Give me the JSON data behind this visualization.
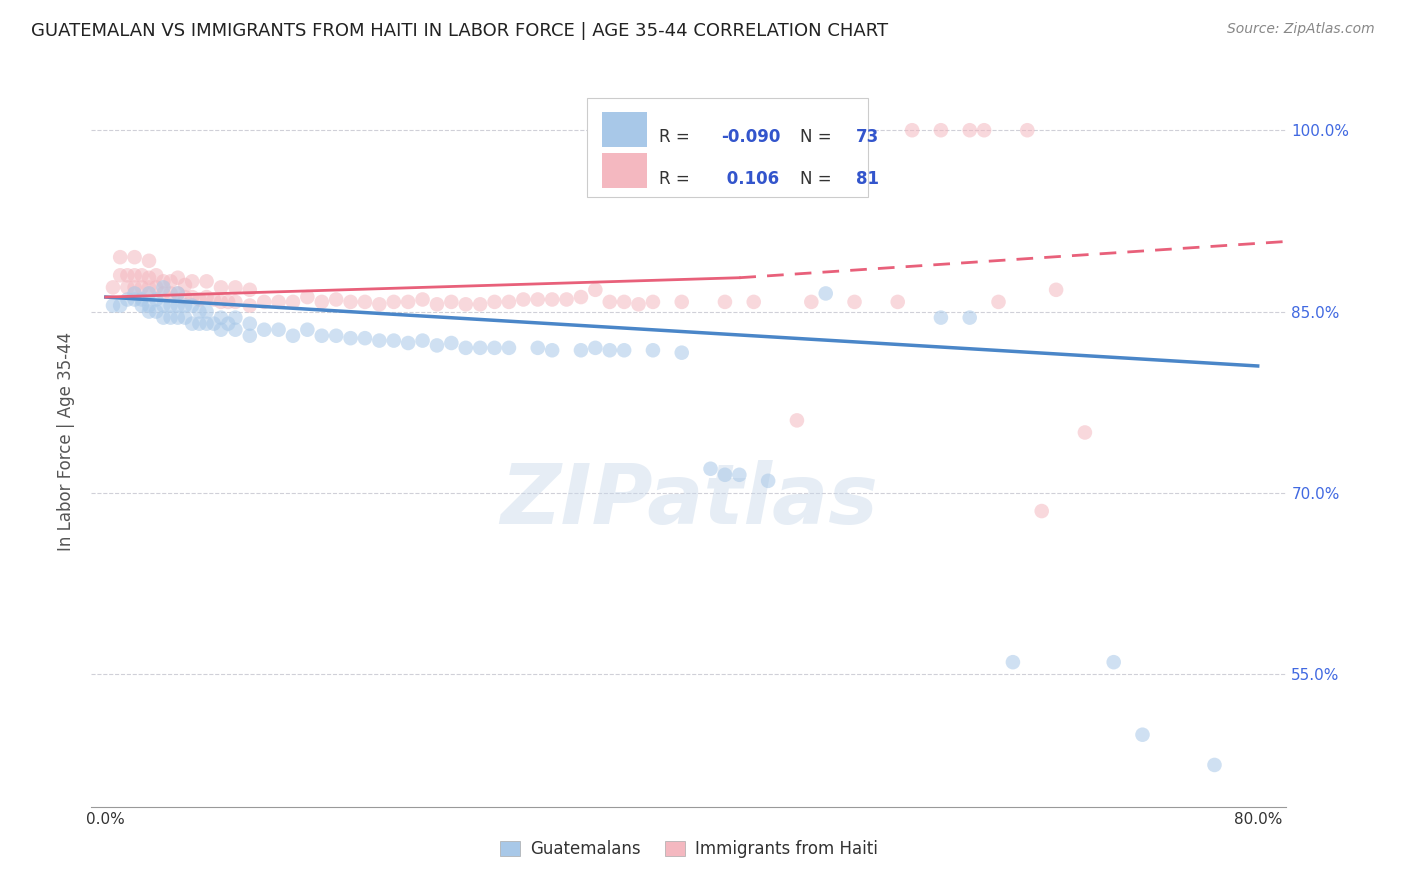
{
  "title": "GUATEMALAN VS IMMIGRANTS FROM HAITI IN LABOR FORCE | AGE 35-44 CORRELATION CHART",
  "source": "Source: ZipAtlas.com",
  "ylabel": "In Labor Force | Age 35-44",
  "xlim": [
    -0.01,
    0.82
  ],
  "ylim": [
    0.44,
    1.045
  ],
  "ytick_positions": [
    0.55,
    0.7,
    0.85,
    1.0
  ],
  "ytick_labels": [
    "55.0%",
    "70.0%",
    "85.0%",
    "100.0%"
  ],
  "xtick_positions": [
    0.0,
    0.1,
    0.2,
    0.3,
    0.4,
    0.5,
    0.6,
    0.7,
    0.8
  ],
  "xtick_labels": [
    "0.0%",
    "",
    "",
    "",
    "",
    "",
    "",
    "",
    "80.0%"
  ],
  "blue_R": -0.09,
  "blue_N": 73,
  "pink_R": 0.106,
  "pink_N": 81,
  "blue_color": "#a8c8e8",
  "pink_color": "#f4b8c0",
  "blue_line_color": "#4a86c8",
  "pink_line_color": "#e8607a",
  "legend_blue_label": "Guatemalans",
  "legend_pink_label": "Immigrants from Haiti",
  "watermark": "ZIPatlas",
  "blue_x": [
    0.005,
    0.01,
    0.015,
    0.02,
    0.02,
    0.025,
    0.025,
    0.03,
    0.03,
    0.03,
    0.035,
    0.035,
    0.04,
    0.04,
    0.04,
    0.045,
    0.045,
    0.05,
    0.05,
    0.05,
    0.055,
    0.055,
    0.06,
    0.06,
    0.065,
    0.065,
    0.07,
    0.07,
    0.075,
    0.08,
    0.08,
    0.085,
    0.09,
    0.09,
    0.1,
    0.1,
    0.11,
    0.12,
    0.13,
    0.14,
    0.15,
    0.16,
    0.17,
    0.18,
    0.19,
    0.2,
    0.21,
    0.22,
    0.23,
    0.24,
    0.25,
    0.26,
    0.27,
    0.28,
    0.3,
    0.31,
    0.33,
    0.34,
    0.35,
    0.36,
    0.38,
    0.4,
    0.42,
    0.43,
    0.44,
    0.46,
    0.5,
    0.58,
    0.6,
    0.63,
    0.7,
    0.72,
    0.77
  ],
  "blue_y": [
    0.855,
    0.855,
    0.86,
    0.86,
    0.865,
    0.855,
    0.86,
    0.85,
    0.855,
    0.865,
    0.85,
    0.86,
    0.845,
    0.855,
    0.87,
    0.845,
    0.855,
    0.845,
    0.855,
    0.865,
    0.845,
    0.855,
    0.84,
    0.855,
    0.84,
    0.85,
    0.84,
    0.85,
    0.84,
    0.835,
    0.845,
    0.84,
    0.835,
    0.845,
    0.83,
    0.84,
    0.835,
    0.835,
    0.83,
    0.835,
    0.83,
    0.83,
    0.828,
    0.828,
    0.826,
    0.826,
    0.824,
    0.826,
    0.822,
    0.824,
    0.82,
    0.82,
    0.82,
    0.82,
    0.82,
    0.818,
    0.818,
    0.82,
    0.818,
    0.818,
    0.818,
    0.816,
    0.72,
    0.715,
    0.715,
    0.71,
    0.865,
    0.845,
    0.845,
    0.56,
    0.56,
    0.5,
    0.475
  ],
  "pink_x": [
    0.005,
    0.01,
    0.01,
    0.015,
    0.015,
    0.02,
    0.02,
    0.02,
    0.025,
    0.025,
    0.03,
    0.03,
    0.03,
    0.035,
    0.035,
    0.04,
    0.04,
    0.045,
    0.045,
    0.05,
    0.05,
    0.055,
    0.055,
    0.06,
    0.06,
    0.065,
    0.07,
    0.07,
    0.075,
    0.08,
    0.08,
    0.085,
    0.09,
    0.09,
    0.1,
    0.1,
    0.11,
    0.12,
    0.13,
    0.14,
    0.15,
    0.16,
    0.17,
    0.18,
    0.19,
    0.2,
    0.21,
    0.22,
    0.23,
    0.24,
    0.25,
    0.26,
    0.27,
    0.28,
    0.29,
    0.3,
    0.31,
    0.32,
    0.33,
    0.34,
    0.35,
    0.36,
    0.37,
    0.38,
    0.39,
    0.4,
    0.43,
    0.45,
    0.48,
    0.49,
    0.52,
    0.55,
    0.56,
    0.58,
    0.6,
    0.61,
    0.62,
    0.64,
    0.65,
    0.66,
    0.68
  ],
  "pink_y": [
    0.87,
    0.88,
    0.895,
    0.87,
    0.88,
    0.87,
    0.88,
    0.895,
    0.87,
    0.88,
    0.87,
    0.878,
    0.892,
    0.87,
    0.88,
    0.865,
    0.875,
    0.865,
    0.875,
    0.865,
    0.878,
    0.862,
    0.872,
    0.862,
    0.875,
    0.86,
    0.862,
    0.875,
    0.86,
    0.858,
    0.87,
    0.858,
    0.858,
    0.87,
    0.855,
    0.868,
    0.858,
    0.858,
    0.858,
    0.862,
    0.858,
    0.86,
    0.858,
    0.858,
    0.856,
    0.858,
    0.858,
    0.86,
    0.856,
    0.858,
    0.856,
    0.856,
    0.858,
    0.858,
    0.86,
    0.86,
    0.86,
    0.86,
    0.862,
    0.868,
    0.858,
    0.858,
    0.856,
    0.858,
    0.95,
    0.858,
    0.858,
    0.858,
    0.76,
    0.858,
    0.858,
    0.858,
    1.0,
    1.0,
    1.0,
    1.0,
    0.858,
    1.0,
    0.685,
    0.868,
    0.75
  ],
  "grid_color": "#d0d0d8",
  "background_color": "#ffffff",
  "right_tick_color": "#4169e1",
  "title_fontsize": 13,
  "source_fontsize": 10,
  "scatter_size": 110,
  "scatter_alpha": 0.55
}
